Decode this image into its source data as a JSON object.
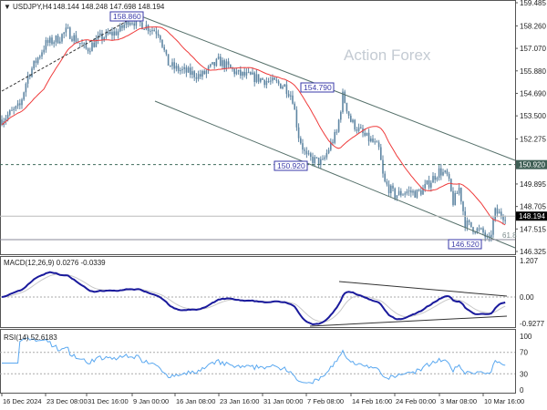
{
  "chart_data": {
    "type": "candlestick",
    "title": "USDJPY,H4",
    "ohlc_header": [
      "148.144",
      "148.248",
      "147.698",
      "148.194"
    ],
    "watermark": "Action Forex",
    "ylim": [
      146.325,
      159.485
    ],
    "y_ticks": [
      "159.485",
      "158.260",
      "157.070",
      "155.880",
      "154.690",
      "153.500",
      "152.275",
      "149.895",
      "148.705",
      "147.515",
      "146.325"
    ],
    "x_ticks": [
      "16 Dec 2024",
      "23 Dec 08:00",
      "31 Dec 16:00",
      "9 Jan 00:00",
      "16 Jan 08:00",
      "23 Jan 16:00",
      "31 Jan 00:00",
      "7 Feb 08:00",
      "14 Feb 16:00",
      "24 Feb 00:00",
      "3 Mar 08:00",
      "10 Mar 16:00"
    ],
    "current_price": "148.194",
    "level_marker": "150.920",
    "annotations": [
      "158.860",
      "154.790",
      "150.920",
      "146.520"
    ],
    "fib_label": "61.8",
    "approx_closes": [
      [
        "2024-12-16 00:00",
        153.3
      ],
      [
        "2024-12-19 00:00",
        154.0
      ],
      [
        "2024-12-20 08:00",
        155.6
      ],
      [
        "2024-12-23 08:00",
        157.3
      ],
      [
        "2024-12-26 00:00",
        157.6
      ],
      [
        "2024-12-27 16:00",
        158.0
      ],
      [
        "2024-12-31 16:00",
        157.0
      ],
      [
        "2025-01-03 00:00",
        157.6
      ],
      [
        "2025-01-06 16:00",
        158.0
      ],
      [
        "2025-01-08 08:00",
        158.6
      ],
      [
        "2025-01-10 08:00",
        158.4
      ],
      [
        "2025-01-13 16:00",
        157.9
      ],
      [
        "2025-01-15 00:00",
        156.3
      ],
      [
        "2025-01-16 08:00",
        156.0
      ],
      [
        "2025-01-20 16:00",
        155.6
      ],
      [
        "2025-01-23 16:00",
        156.4
      ],
      [
        "2025-01-27 00:00",
        155.7
      ],
      [
        "2025-01-30 00:00",
        155.5
      ],
      [
        "2025-02-03 16:00",
        155.1
      ],
      [
        "2025-02-05 00:00",
        154.5
      ],
      [
        "2025-02-06 00:00",
        152.5
      ],
      [
        "2025-02-07 08:00",
        151.3
      ],
      [
        "2025-02-10 00:00",
        151.0
      ],
      [
        "2025-02-11 08:00",
        152.0
      ],
      [
        "2025-02-12 08:00",
        152.6
      ],
      [
        "2025-02-13 08:00",
        154.6
      ],
      [
        "2025-02-14 16:00",
        153.2
      ],
      [
        "2025-02-17 16:00",
        152.4
      ],
      [
        "2025-02-19 08:00",
        152.1
      ],
      [
        "2025-02-20 16:00",
        151.7
      ],
      [
        "2025-02-21 16:00",
        150.0
      ],
      [
        "2025-02-24 00:00",
        149.3
      ],
      [
        "2025-02-26 00:00",
        149.5
      ],
      [
        "2025-02-27 16:00",
        149.4
      ],
      [
        "2025-02-28 16:00",
        149.6
      ],
      [
        "2025-03-03 08:00",
        150.6
      ],
      [
        "2025-03-04 16:00",
        150.3
      ],
      [
        "2025-03-05 16:00",
        148.9
      ],
      [
        "2025-03-06 16:00",
        149.7
      ],
      [
        "2025-03-07 16:00",
        147.8
      ],
      [
        "2025-03-10 16:00",
        147.3
      ],
      [
        "2025-03-11 16:00",
        146.8
      ],
      [
        "2025-03-12 16:00",
        148.4
      ],
      [
        "2025-03-14 12:00",
        148.19
      ]
    ],
    "colors": {
      "candles": "#5f86a3",
      "ma": "#ef3b3b",
      "macd": "#1a1a9c",
      "signal": "#c8c8c8",
      "rsi": "#5aa8f0",
      "level_box": "#3a3aa8"
    },
    "macd": {
      "label": "MACD(12,26,9) 0.0276 -0.0339",
      "ticks": [
        "1.207",
        "0.00",
        "-0.9277"
      ]
    },
    "rsi": {
      "label": "RSI(14) 52.6183",
      "ticks": [
        "100",
        "70",
        "30",
        "0"
      ]
    }
  }
}
